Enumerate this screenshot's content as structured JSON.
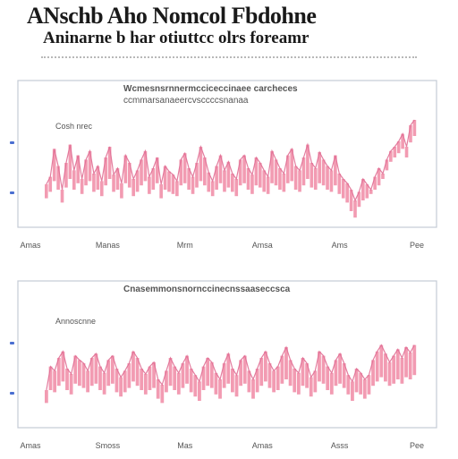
{
  "title": {
    "line1": "ANschb Aho Nomcol Fbdohne",
    "line2": "Aninarne b har otiuttcc olrs foreamr"
  },
  "colors": {
    "series": "#f08aa4",
    "series_line": "#e06f95",
    "frame": "#c4cbd6",
    "tick_mark": "#4a6fd1",
    "text_gray": "#555555"
  },
  "chart_data": [
    {
      "type": "bar",
      "title": "Wcmesnsrnnermcciceccinaee carcheces",
      "subtitle": "ccmmarsanaeercvsccccsnanaa",
      "series_label": "Cosh nrec",
      "x_ticks": [
        "Amas",
        "Manas",
        "Mrm",
        "Amsa",
        "Ams",
        "Pee"
      ],
      "y_ticks": [
        "",
        ""
      ],
      "ylim": [
        0,
        100
      ],
      "grid": false,
      "values": [
        35,
        42,
        68,
        52,
        30,
        55,
        72,
        48,
        62,
        40,
        58,
        66,
        45,
        52,
        38,
        60,
        70,
        44,
        50,
        36,
        62,
        55,
        40,
        48,
        58,
        66,
        42,
        50,
        60,
        35,
        52,
        47,
        44,
        38,
        58,
        64,
        50,
        42,
        55,
        70,
        60,
        46,
        38,
        52,
        62,
        48,
        56,
        45,
        40,
        58,
        62,
        50,
        44,
        60,
        55,
        48,
        42,
        66,
        58,
        50,
        45,
        62,
        68,
        52,
        48,
        60,
        72,
        55,
        50,
        65,
        58,
        52,
        48,
        62,
        45,
        40,
        36,
        30,
        20,
        28,
        40,
        35,
        30,
        42,
        50,
        45,
        58,
        66,
        70,
        75,
        82,
        70,
        90,
        95
      ],
      "lows": [
        22,
        28,
        38,
        30,
        18,
        32,
        40,
        30,
        36,
        26,
        34,
        38,
        28,
        30,
        24,
        34,
        40,
        28,
        30,
        22,
        36,
        32,
        24,
        28,
        34,
        38,
        26,
        30,
        36,
        22,
        30,
        28,
        26,
        24,
        34,
        36,
        30,
        26,
        32,
        38,
        34,
        28,
        24,
        30,
        36,
        28,
        32,
        28,
        24,
        34,
        36,
        30,
        26,
        34,
        32,
        28,
        26,
        36,
        34,
        30,
        28,
        36,
        38,
        30,
        28,
        34,
        40,
        32,
        30,
        36,
        34,
        30,
        28,
        34,
        26,
        22,
        18,
        10,
        4,
        14,
        20,
        22,
        26,
        30,
        34,
        40,
        48,
        56,
        60,
        64,
        68,
        60,
        74,
        80
      ]
    },
    {
      "type": "bar",
      "title": "Cnasemmonsnornccinecnssaaseccsca",
      "subtitle": "",
      "series_label": "Annoscnne",
      "x_ticks": [
        "Amas",
        "Smoss",
        "Mas",
        "Amas",
        "Asss",
        "Pee"
      ],
      "y_ticks": [
        "",
        ""
      ],
      "ylim": [
        0,
        100
      ],
      "grid": false,
      "values": [
        30,
        52,
        48,
        60,
        66,
        50,
        45,
        62,
        58,
        55,
        48,
        60,
        64,
        52,
        46,
        58,
        62,
        50,
        42,
        48,
        55,
        66,
        60,
        50,
        45,
        52,
        56,
        40,
        35,
        48,
        60,
        52,
        46,
        55,
        62,
        50,
        44,
        38,
        52,
        60,
        56,
        46,
        40,
        55,
        64,
        50,
        44,
        58,
        62,
        48,
        40,
        50,
        60,
        66,
        55,
        48,
        52,
        62,
        70,
        58,
        50,
        46,
        60,
        55,
        42,
        48,
        66,
        62,
        52,
        46,
        58,
        64,
        55,
        44,
        38,
        50,
        46,
        40,
        44,
        58,
        66,
        72,
        64,
        56,
        62,
        68,
        60,
        70,
        65,
        72
      ],
      "lows": [
        18,
        30,
        28,
        34,
        38,
        30,
        26,
        36,
        34,
        32,
        28,
        34,
        36,
        30,
        26,
        34,
        36,
        28,
        24,
        28,
        32,
        38,
        34,
        30,
        26,
        30,
        32,
        22,
        18,
        28,
        34,
        30,
        26,
        32,
        36,
        28,
        24,
        20,
        30,
        34,
        32,
        26,
        22,
        32,
        36,
        28,
        24,
        34,
        36,
        28,
        22,
        28,
        34,
        38,
        32,
        28,
        30,
        36,
        40,
        34,
        28,
        26,
        34,
        32,
        24,
        28,
        38,
        36,
        30,
        26,
        34,
        36,
        32,
        26,
        20,
        28,
        26,
        22,
        26,
        34,
        38,
        42,
        38,
        34,
        36,
        40,
        36,
        42,
        40,
        44
      ]
    }
  ]
}
